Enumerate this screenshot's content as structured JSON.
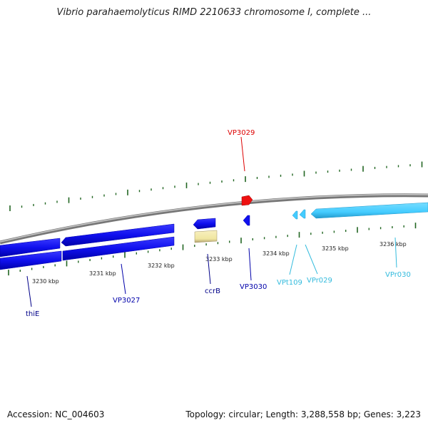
{
  "title": "Vibrio parahaemolyticus RIMD 2210633 chromosome I, complete ...",
  "footer": {
    "accession": "Accession: NC_004603",
    "topology": "Topology: circular; Length: 3,288,558 bp; Genes: 3,223"
  },
  "ticks": [
    "3230 kbp",
    "3231 kbp",
    "3232 kbp",
    "3233 kbp",
    "3234 kbp",
    "3235 kbp",
    "3236 kbp"
  ],
  "genes": [
    {
      "label": "VP3029",
      "color": "#dd0000"
    },
    {
      "label": "thiE",
      "color": "#000088"
    },
    {
      "label": "VP3027",
      "color": "#0000aa"
    },
    {
      "label": "ccrB",
      "color": "#000088"
    },
    {
      "label": "VP3030",
      "color": "#0000aa"
    },
    {
      "label": "VPt109",
      "color": "#33bbdd"
    },
    {
      "label": "VPr029",
      "color": "#33bbdd"
    },
    {
      "label": "VPr030",
      "color": "#33bbdd"
    }
  ],
  "colors": {
    "backbone": "#888888",
    "tick_mark": "#226622",
    "gene_blue": "#1010ee",
    "gene_cyan": "#44ccff",
    "gene_red": "#ee1111",
    "gene_yellow": "#f0e6a0"
  }
}
